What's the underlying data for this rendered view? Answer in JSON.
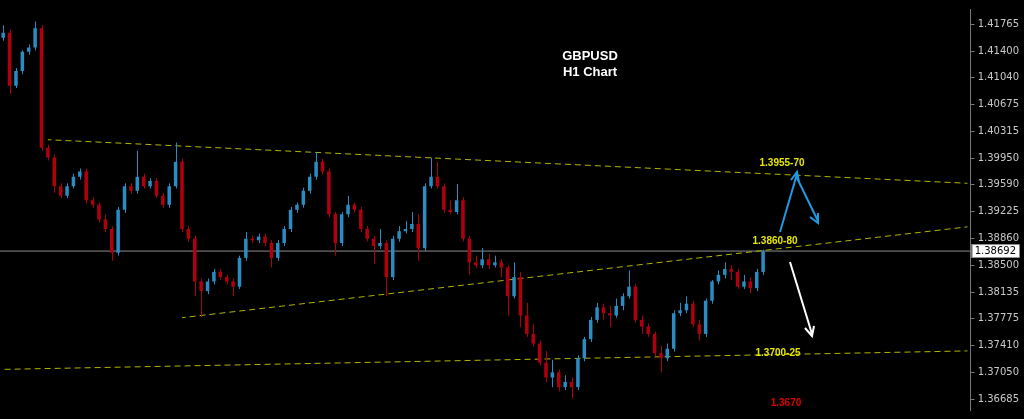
{
  "chart_data": {
    "type": "candlestick",
    "title": "GBPUSD",
    "subtitle": "H1 Chart",
    "categories": [
      null,
      null,
      null,
      null,
      null,
      null,
      null,
      null,
      null,
      null,
      null,
      null,
      null,
      null,
      null,
      null,
      null,
      null,
      null,
      null,
      null,
      null,
      null,
      null,
      null,
      null,
      null,
      null,
      null,
      null,
      null,
      null,
      null,
      null,
      null,
      null,
      null,
      null,
      null,
      null,
      null,
      null,
      null,
      null,
      null,
      null,
      null,
      null,
      null,
      null,
      null,
      null,
      null,
      null,
      null,
      null,
      null,
      null,
      null,
      null,
      null,
      null,
      null,
      null,
      null,
      null,
      null,
      null,
      null,
      null,
      null,
      null,
      null,
      null,
      null,
      null,
      null,
      null,
      null,
      null,
      null,
      null,
      null,
      null,
      null,
      null,
      null,
      null,
      null,
      null,
      null,
      null,
      null,
      null,
      null,
      null,
      null,
      null,
      null,
      null,
      null,
      null,
      null,
      null,
      null,
      null,
      null,
      null,
      null,
      null,
      null,
      null,
      null,
      null,
      null,
      null,
      null,
      null,
      null,
      null,
      null,
      null,
      null,
      null,
      null,
      null,
      null,
      null,
      null,
      null,
      null,
      null,
      null,
      null,
      null,
      null,
      null,
      null,
      null,
      null,
      null,
      null,
      null,
      null,
      null,
      null,
      null,
      null,
      null,
      null,
      null,
      null
    ],
    "ohlc": [
      [
        1.4158,
        1.4175,
        1.4154,
        1.4165
      ],
      [
        1.4165,
        1.4169,
        1.4082,
        1.4093
      ],
      [
        1.4093,
        1.4117,
        1.409,
        1.4113
      ],
      [
        1.4113,
        1.4141,
        1.4109,
        1.4139
      ],
      [
        1.4139,
        1.4149,
        1.4135,
        1.4145
      ],
      [
        1.4145,
        1.418,
        1.4141,
        1.4171
      ],
      [
        1.4171,
        1.4175,
        1.4005,
        1.4009
      ],
      [
        1.4009,
        1.4013,
        1.3992,
        1.3996
      ],
      [
        1.3996,
        1.4,
        1.3948,
        1.3957
      ],
      [
        1.3957,
        1.3961,
        1.3941,
        1.3944
      ],
      [
        1.3944,
        1.3961,
        1.3941,
        1.3957
      ],
      [
        1.3957,
        1.3974,
        1.3954,
        1.397
      ],
      [
        1.397,
        1.3981,
        1.3966,
        1.3977
      ],
      [
        1.3977,
        1.3981,
        1.3934,
        1.3938
      ],
      [
        1.3938,
        1.3942,
        1.3928,
        1.3932
      ],
      [
        1.3932,
        1.3935,
        1.3908,
        1.3912
      ],
      [
        1.3912,
        1.3919,
        1.3895,
        1.3899
      ],
      [
        1.3899,
        1.3903,
        1.3856,
        1.3867
      ],
      [
        1.3867,
        1.3929,
        1.3863,
        1.3925
      ],
      [
        1.3925,
        1.3961,
        1.3921,
        1.3957
      ],
      [
        1.3957,
        1.3961,
        1.3947,
        1.3951
      ],
      [
        1.3951,
        1.4005,
        1.3947,
        1.397
      ],
      [
        1.397,
        1.3974,
        1.3954,
        1.3957
      ],
      [
        1.3957,
        1.3968,
        1.3954,
        1.3964
      ],
      [
        1.3964,
        1.3968,
        1.3941,
        1.3944
      ],
      [
        1.3944,
        1.3948,
        1.3928,
        1.3932
      ],
      [
        1.3932,
        1.3961,
        1.3928,
        1.3957
      ],
      [
        1.3957,
        1.4016,
        1.3954,
        1.399
      ],
      [
        1.399,
        1.3994,
        1.3895,
        1.3899
      ],
      [
        1.3899,
        1.3903,
        1.3882,
        1.3886
      ],
      [
        1.3886,
        1.389,
        1.3808,
        1.3828
      ],
      [
        1.3828,
        1.3832,
        1.378,
        1.3815
      ],
      [
        1.3815,
        1.3832,
        1.3811,
        1.3828
      ],
      [
        1.3828,
        1.3845,
        1.3824,
        1.3841
      ],
      [
        1.3841,
        1.3845,
        1.383,
        1.3834
      ],
      [
        1.3834,
        1.3837,
        1.3824,
        1.3828
      ],
      [
        1.3828,
        1.3832,
        1.3808,
        1.3821
      ],
      [
        1.3821,
        1.3863,
        1.3818,
        1.386
      ],
      [
        1.386,
        1.3895,
        1.3856,
        1.3886
      ],
      [
        1.3886,
        1.389,
        1.388,
        1.3884
      ],
      [
        1.3884,
        1.3893,
        1.388,
        1.3889
      ],
      [
        1.3889,
        1.3893,
        1.3876,
        1.388
      ],
      [
        1.388,
        1.3884,
        1.3847,
        1.386
      ],
      [
        1.386,
        1.3884,
        1.3856,
        1.388
      ],
      [
        1.388,
        1.3903,
        1.3876,
        1.3899
      ],
      [
        1.3899,
        1.3929,
        1.3895,
        1.3925
      ],
      [
        1.3925,
        1.3935,
        1.3921,
        1.3932
      ],
      [
        1.3932,
        1.3955,
        1.3928,
        1.3951
      ],
      [
        1.3951,
        1.3974,
        1.3947,
        1.397
      ],
      [
        1.397,
        1.4003,
        1.3966,
        1.399
      ],
      [
        1.399,
        1.3994,
        1.3973,
        1.3977
      ],
      [
        1.3977,
        1.3981,
        1.3915,
        1.3919
      ],
      [
        1.3919,
        1.3922,
        1.3863,
        1.388
      ],
      [
        1.388,
        1.3922,
        1.3876,
        1.3919
      ],
      [
        1.3919,
        1.3944,
        1.3915,
        1.3932
      ],
      [
        1.3932,
        1.3935,
        1.3921,
        1.3925
      ],
      [
        1.3925,
        1.3929,
        1.3895,
        1.3899
      ],
      [
        1.3899,
        1.3903,
        1.3882,
        1.3886
      ],
      [
        1.3886,
        1.389,
        1.3852,
        1.3876
      ],
      [
        1.3876,
        1.3899,
        1.3872,
        1.388
      ],
      [
        1.388,
        1.3884,
        1.3808,
        1.3834
      ],
      [
        1.3834,
        1.389,
        1.383,
        1.3886
      ],
      [
        1.3886,
        1.3903,
        1.3882,
        1.3896
      ],
      [
        1.3896,
        1.391,
        1.3893,
        1.3899
      ],
      [
        1.3899,
        1.3922,
        1.3895,
        1.3906
      ],
      [
        1.3906,
        1.3919,
        1.3856,
        1.3873
      ],
      [
        1.3873,
        1.3961,
        1.3869,
        1.3957
      ],
      [
        1.3957,
        1.3996,
        1.3954,
        1.397
      ],
      [
        1.397,
        1.399,
        1.3954,
        1.3957
      ],
      [
        1.3957,
        1.3961,
        1.3921,
        1.3925
      ],
      [
        1.3925,
        1.3938,
        1.3919,
        1.3922
      ],
      [
        1.3922,
        1.396,
        1.3919,
        1.3938
      ],
      [
        1.3938,
        1.3942,
        1.3882,
        1.3886
      ],
      [
        1.3886,
        1.389,
        1.3837,
        1.3854
      ],
      [
        1.3854,
        1.3863,
        1.3846,
        1.385
      ],
      [
        1.385,
        1.3873,
        1.3846,
        1.3858
      ],
      [
        1.3858,
        1.3865,
        1.3845,
        1.385
      ],
      [
        1.385,
        1.3863,
        1.3847,
        1.3854
      ],
      [
        1.3854,
        1.3858,
        1.3834,
        1.3847
      ],
      [
        1.3847,
        1.385,
        1.3782,
        1.3808
      ],
      [
        1.3808,
        1.3854,
        1.3805,
        1.3834
      ],
      [
        1.3834,
        1.3841,
        1.3766,
        1.3782
      ],
      [
        1.3782,
        1.3799,
        1.3753,
        1.3757
      ],
      [
        1.3757,
        1.377,
        1.374,
        1.3744
      ],
      [
        1.3744,
        1.3748,
        1.3714,
        1.3718
      ],
      [
        1.3718,
        1.3734,
        1.3692,
        1.3698
      ],
      [
        1.3698,
        1.3722,
        1.3685,
        1.3705
      ],
      [
        1.3705,
        1.3709,
        1.3679,
        1.3685
      ],
      [
        1.3685,
        1.3701,
        1.3681,
        1.3692
      ],
      [
        1.3692,
        1.3698,
        1.367,
        1.3685
      ],
      [
        1.3685,
        1.3728,
        1.3681,
        1.3724
      ],
      [
        1.3724,
        1.3753,
        1.372,
        1.375
      ],
      [
        1.375,
        1.378,
        1.3746,
        1.3776
      ],
      [
        1.3776,
        1.3799,
        1.3772,
        1.3793
      ],
      [
        1.3793,
        1.3798,
        1.3776,
        1.3785
      ],
      [
        1.3785,
        1.3795,
        1.3766,
        1.3782
      ],
      [
        1.3782,
        1.3805,
        1.3779,
        1.3795
      ],
      [
        1.3795,
        1.3812,
        1.3789,
        1.3808
      ],
      [
        1.3808,
        1.3843,
        1.3805,
        1.3821
      ],
      [
        1.3821,
        1.3825,
        1.3772,
        1.3776
      ],
      [
        1.3776,
        1.3782,
        1.3757,
        1.3767
      ],
      [
        1.3767,
        1.3771,
        1.3753,
        1.3757
      ],
      [
        1.3757,
        1.376,
        1.3727,
        1.3731
      ],
      [
        1.3731,
        1.3741,
        1.3705,
        1.3724
      ],
      [
        1.3724,
        1.3744,
        1.372,
        1.3737
      ],
      [
        1.3737,
        1.3789,
        1.3733,
        1.3785
      ],
      [
        1.3785,
        1.3799,
        1.3781,
        1.3789
      ],
      [
        1.3789,
        1.3808,
        1.3785,
        1.3798
      ],
      [
        1.3798,
        1.3802,
        1.3766,
        1.377
      ],
      [
        1.377,
        1.3776,
        1.3748,
        1.3757
      ],
      [
        1.3757,
        1.3805,
        1.3753,
        1.3802
      ],
      [
        1.3802,
        1.383,
        1.3798,
        1.3828
      ],
      [
        1.3828,
        1.3843,
        1.3824,
        1.3837
      ],
      [
        1.3837,
        1.3854,
        1.3832,
        1.3845
      ],
      [
        1.3845,
        1.385,
        1.383,
        1.3841
      ],
      [
        1.3841,
        1.3845,
        1.3818,
        1.3821
      ],
      [
        1.3821,
        1.3837,
        1.3818,
        1.3828
      ],
      [
        1.3828,
        1.3834,
        1.3812,
        1.3819
      ],
      [
        1.3819,
        1.3845,
        1.3815,
        1.3841
      ],
      [
        1.3841,
        1.3871,
        1.3837,
        1.3869
      ],
      null,
      null,
      null,
      null,
      null,
      null,
      null,
      null,
      null,
      null,
      null,
      null,
      null,
      null,
      null,
      null,
      null,
      null,
      null,
      null,
      null,
      null,
      null,
      null,
      null,
      null,
      null,
      null,
      null,
      null,
      null,
      null
    ],
    "colors": [
      "#2a8cc0",
      "#b00010",
      "#2a8cc0",
      "#2a8cc0",
      "#2a8cc0",
      "#2a8cc0",
      "#b00010",
      "#b00010",
      "#b00010",
      "#b00010",
      "#2a8cc0",
      "#2a8cc0",
      "#2a8cc0",
      "#b00010",
      "#b00010",
      "#b00010",
      "#b00010",
      "#b00010",
      "#2a8cc0",
      "#2a8cc0",
      "#b00010",
      "#2a8cc0",
      "#b00010",
      "#2a8cc0",
      "#b00010",
      "#b00010",
      "#2a8cc0",
      "#2a8cc0",
      "#b00010",
      "#b00010",
      "#b00010",
      "#b00010",
      "#2a8cc0",
      "#2a8cc0",
      "#b00010",
      "#b00010",
      "#b00010",
      "#2a8cc0",
      "#2a8cc0",
      "#b00010",
      "#2a8cc0",
      "#b00010",
      "#b00010",
      "#2a8cc0",
      "#2a8cc0",
      "#2a8cc0",
      "#2a8cc0",
      "#2a8cc0",
      "#2a8cc0",
      "#2a8cc0",
      "#b00010",
      "#b00010",
      "#b00010",
      "#2a8cc0",
      "#2a8cc0",
      "#b00010",
      "#b00010",
      "#b00010",
      "#b00010",
      "#2a8cc0",
      "#b00010",
      "#2a8cc0",
      "#2a8cc0",
      "#2a8cc0",
      "#2a8cc0",
      "#b00010",
      "#2a8cc0",
      "#2a8cc0",
      "#b00010",
      "#b00010",
      "#b00010",
      "#2a8cc0",
      "#b00010",
      "#b00010",
      "#b00010",
      "#2a8cc0",
      "#b00010",
      "#2a8cc0",
      "#b00010",
      "#b00010",
      "#2a8cc0",
      "#b00010",
      "#b00010",
      "#b00010",
      "#b00010",
      "#b00010",
      "#2a8cc0",
      "#b00010",
      "#2a8cc0",
      "#b00010",
      "#2a8cc0",
      "#2a8cc0",
      "#2a8cc0",
      "#2a8cc0",
      "#b00010",
      "#b00010",
      "#2a8cc0",
      "#2a8cc0",
      "#2a8cc0",
      "#b00010",
      "#b00010",
      "#b00010",
      "#b00010",
      "#b00010",
      "#2a8cc0",
      "#2a8cc0",
      "#2a8cc0",
      "#2a8cc0",
      "#b00010",
      "#b00010",
      "#2a8cc0",
      "#2a8cc0",
      "#2a8cc0",
      "#2a8cc0",
      "#b00010",
      "#b00010",
      "#2a8cc0",
      "#b00010",
      "#2a8cc0",
      "#2a8cc0",
      null,
      null,
      null,
      null,
      null,
      null,
      null,
      null,
      null,
      null,
      null,
      null,
      null,
      null,
      null,
      null,
      null,
      null,
      null,
      null,
      null,
      null,
      null,
      null,
      null,
      null,
      null,
      null,
      null,
      null,
      null,
      null
    ],
    "series": [
      {
        "type": "line",
        "color": "#b4b400",
        "line_style": "dashed",
        "values": [
          null,
          null,
          null,
          null,
          null,
          null,
          null,
          1.402,
          null,
          null,
          null,
          null,
          null,
          null,
          null,
          null,
          null,
          null,
          null,
          null,
          null,
          null,
          null,
          null,
          null,
          null,
          null,
          null,
          null,
          null,
          null,
          null,
          null,
          null,
          null,
          null,
          null,
          null,
          null,
          null,
          null,
          null,
          null,
          null,
          null,
          null,
          null,
          null,
          null,
          null,
          null,
          null,
          null,
          null,
          null,
          null,
          null,
          null,
          null,
          null,
          null,
          null,
          null,
          null,
          null,
          null,
          null,
          null,
          null,
          null,
          null,
          null,
          null,
          null,
          null,
          null,
          null,
          null,
          null,
          null,
          null,
          null,
          null,
          null,
          null,
          null,
          null,
          null,
          null,
          null,
          null,
          null,
          null,
          null,
          null,
          null,
          null,
          null,
          null,
          null,
          null,
          null,
          null,
          null,
          null,
          null,
          null,
          null,
          null,
          null,
          null,
          null,
          null,
          null,
          null,
          null,
          null,
          null,
          null,
          null,
          null,
          null,
          null,
          null,
          null,
          null,
          null,
          null,
          null,
          null,
          null,
          null,
          null,
          null,
          null,
          null,
          null,
          null,
          null,
          null,
          null,
          null,
          null,
          null,
          null,
          null,
          null,
          null,
          null,
          null,
          null,
          1.3961
        ]
      },
      {
        "type": "line",
        "color": "#b4b400",
        "line_style": "dashed",
        "values": [
          null,
          null,
          null,
          null,
          null,
          null,
          null,
          null,
          null,
          null,
          null,
          null,
          null,
          null,
          null,
          null,
          null,
          null,
          null,
          null,
          null,
          null,
          null,
          null,
          null,
          null,
          null,
          null,
          1.3779,
          null,
          null,
          null,
          null,
          null,
          null,
          null,
          null,
          null,
          null,
          null,
          null,
          null,
          null,
          null,
          null,
          null,
          null,
          null,
          null,
          null,
          null,
          null,
          null,
          null,
          null,
          null,
          null,
          null,
          null,
          null,
          null,
          null,
          null,
          null,
          null,
          null,
          null,
          null,
          null,
          null,
          null,
          null,
          null,
          null,
          null,
          null,
          null,
          null,
          null,
          null,
          null,
          null,
          null,
          null,
          null,
          null,
          null,
          null,
          null,
          null,
          null,
          null,
          null,
          null,
          null,
          null,
          null,
          null,
          null,
          null,
          null,
          null,
          null,
          null,
          null,
          null,
          null,
          null,
          null,
          null,
          null,
          null,
          null,
          null,
          null,
          null,
          null,
          null,
          null,
          null,
          null,
          null,
          null,
          null,
          null,
          null,
          null,
          null,
          null,
          null,
          null,
          null,
          null,
          null,
          null,
          null,
          null,
          null,
          null,
          null,
          null,
          null,
          null,
          null,
          null,
          null,
          null,
          null,
          null,
          null,
          null,
          1.3902
        ]
      },
      {
        "type": "line",
        "color": "#b4b400",
        "line_style": "dashed",
        "values": [
          1.3709,
          null,
          null,
          null,
          null,
          null,
          null,
          null,
          null,
          null,
          null,
          null,
          null,
          null,
          null,
          null,
          null,
          null,
          null,
          null,
          null,
          null,
          null,
          null,
          null,
          null,
          null,
          null,
          null,
          null,
          null,
          null,
          null,
          null,
          null,
          null,
          null,
          null,
          null,
          null,
          null,
          null,
          null,
          null,
          null,
          null,
          null,
          null,
          null,
          null,
          null,
          null,
          null,
          null,
          null,
          null,
          null,
          null,
          null,
          null,
          null,
          null,
          null,
          null,
          null,
          null,
          null,
          null,
          null,
          null,
          null,
          null,
          null,
          null,
          null,
          null,
          null,
          null,
          null,
          null,
          null,
          null,
          null,
          null,
          null,
          null,
          null,
          null,
          null,
          null,
          null,
          null,
          null,
          null,
          null,
          null,
          null,
          null,
          null,
          null,
          null,
          null,
          null,
          null,
          null,
          null,
          null,
          null,
          null,
          null,
          null,
          null,
          null,
          null,
          null,
          null,
          null,
          null,
          null,
          null,
          null,
          null,
          null,
          null,
          null,
          null,
          null,
          null,
          null,
          null,
          null,
          null,
          null,
          null,
          null,
          null,
          null,
          null,
          null,
          null,
          null,
          null,
          null,
          null,
          null,
          null,
          null,
          null,
          null,
          null,
          null,
          1.3734
        ]
      }
    ],
    "ylim": [
      1.3654,
      1.4197
    ],
    "yticks": [
      1.41765,
      {
        "value": 1.414,
        "label": "1.41400"
      },
      {
        "value": 1.4104,
        "label": "1.41040"
      },
      1.40675,
      1.40315,
      {
        "value": 1.3995,
        "label": "1.39950"
      },
      {
        "value": 1.3959,
        "label": "1.39590"
      },
      1.39225,
      {
        "value": 1.3886,
        "label": "1.38860"
      },
      {
        "value": 1.385,
        "label": "1.38500"
      },
      1.38135,
      1.37775,
      {
        "value": 1.3741,
        "label": "1.37410"
      },
      {
        "value": 1.3705,
        "label": "1.37050"
      },
      1.36685
    ],
    "ref_lines": [
      {
        "axis": "y",
        "value": 1.38692,
        "label": "1.38692",
        "color": "#8c8c8c"
      }
    ],
    "annotations": [
      "1.3955-70",
      {
        "text": "1.3860-80",
        "y": 1.387
      },
      "1.3700-25",
      "1.3670"
    ],
    "grid": false,
    "legend": false,
    "tick_labels": "y"
  }
}
